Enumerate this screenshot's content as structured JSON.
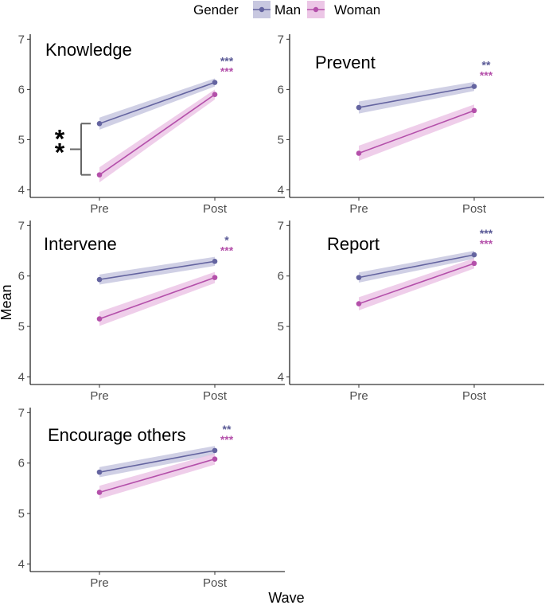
{
  "chart_data": {
    "type": "line",
    "xlabel": "Wave",
    "ylabel": "Mean",
    "categories": [
      "Pre",
      "Post"
    ],
    "ylim": [
      3.85,
      7.1
    ],
    "yticks": [
      4,
      5,
      6,
      7
    ],
    "ytick_labels": [
      "4",
      "5",
      "6",
      "7"
    ],
    "legend": {
      "title": "Gender",
      "position": "top",
      "entries": [
        "Man",
        "Woman"
      ]
    },
    "colors": {
      "Man": "#6464a0",
      "Woman": "#b450aa",
      "Man_ribbon": "#c8c8e0",
      "Woman_ribbon": "#ecc6e6",
      "axis": "#000000",
      "bracket": "#666666"
    },
    "panels": [
      {
        "title": "Knowledge",
        "series": [
          {
            "name": "Man",
            "values": [
              5.32,
              6.14
            ],
            "lower": [
              5.2,
              6.06
            ],
            "upper": [
              5.44,
              6.22
            ]
          },
          {
            "name": "Woman",
            "values": [
              4.3,
              5.9
            ],
            "lower": [
              4.15,
              5.8
            ],
            "upper": [
              4.45,
              6.0
            ]
          }
        ],
        "significance": {
          "Man": "***",
          "Woman": "***"
        },
        "pre_difference": {
          "label": "**",
          "between": [
            5.32,
            4.3
          ]
        }
      },
      {
        "title": "Prevent",
        "series": [
          {
            "name": "Man",
            "values": [
              5.64,
              6.06
            ],
            "lower": [
              5.52,
              5.97
            ],
            "upper": [
              5.76,
              6.15
            ]
          },
          {
            "name": "Woman",
            "values": [
              4.73,
              5.58
            ],
            "lower": [
              4.58,
              5.46
            ],
            "upper": [
              4.88,
              5.7
            ]
          }
        ],
        "significance": {
          "Man": "**",
          "Woman": "***"
        }
      },
      {
        "title": "Intervene",
        "series": [
          {
            "name": "Man",
            "values": [
              5.93,
              6.29
            ],
            "lower": [
              5.83,
              6.2
            ],
            "upper": [
              6.03,
              6.38
            ]
          },
          {
            "name": "Woman",
            "values": [
              5.15,
              5.97
            ],
            "lower": [
              5.01,
              5.86
            ],
            "upper": [
              5.29,
              6.08
            ]
          }
        ],
        "significance": {
          "Man": "*",
          "Woman": "***"
        }
      },
      {
        "title": "Report",
        "series": [
          {
            "name": "Man",
            "values": [
              5.97,
              6.42
            ],
            "lower": [
              5.87,
              6.34
            ],
            "upper": [
              6.07,
              6.5
            ]
          },
          {
            "name": "Woman",
            "values": [
              5.45,
              6.25
            ],
            "lower": [
              5.32,
              6.15
            ],
            "upper": [
              5.58,
              6.35
            ]
          }
        ],
        "significance": {
          "Man": "***",
          "Woman": "***"
        }
      },
      {
        "title": "Encourage others",
        "series": [
          {
            "name": "Man",
            "values": [
              5.82,
              6.25
            ],
            "lower": [
              5.72,
              6.16
            ],
            "upper": [
              5.92,
              6.34
            ]
          },
          {
            "name": "Woman",
            "values": [
              5.42,
              6.08
            ],
            "lower": [
              5.29,
              5.97
            ],
            "upper": [
              5.55,
              6.19
            ]
          }
        ],
        "significance": {
          "Man": "**",
          "Woman": "***"
        }
      }
    ]
  }
}
